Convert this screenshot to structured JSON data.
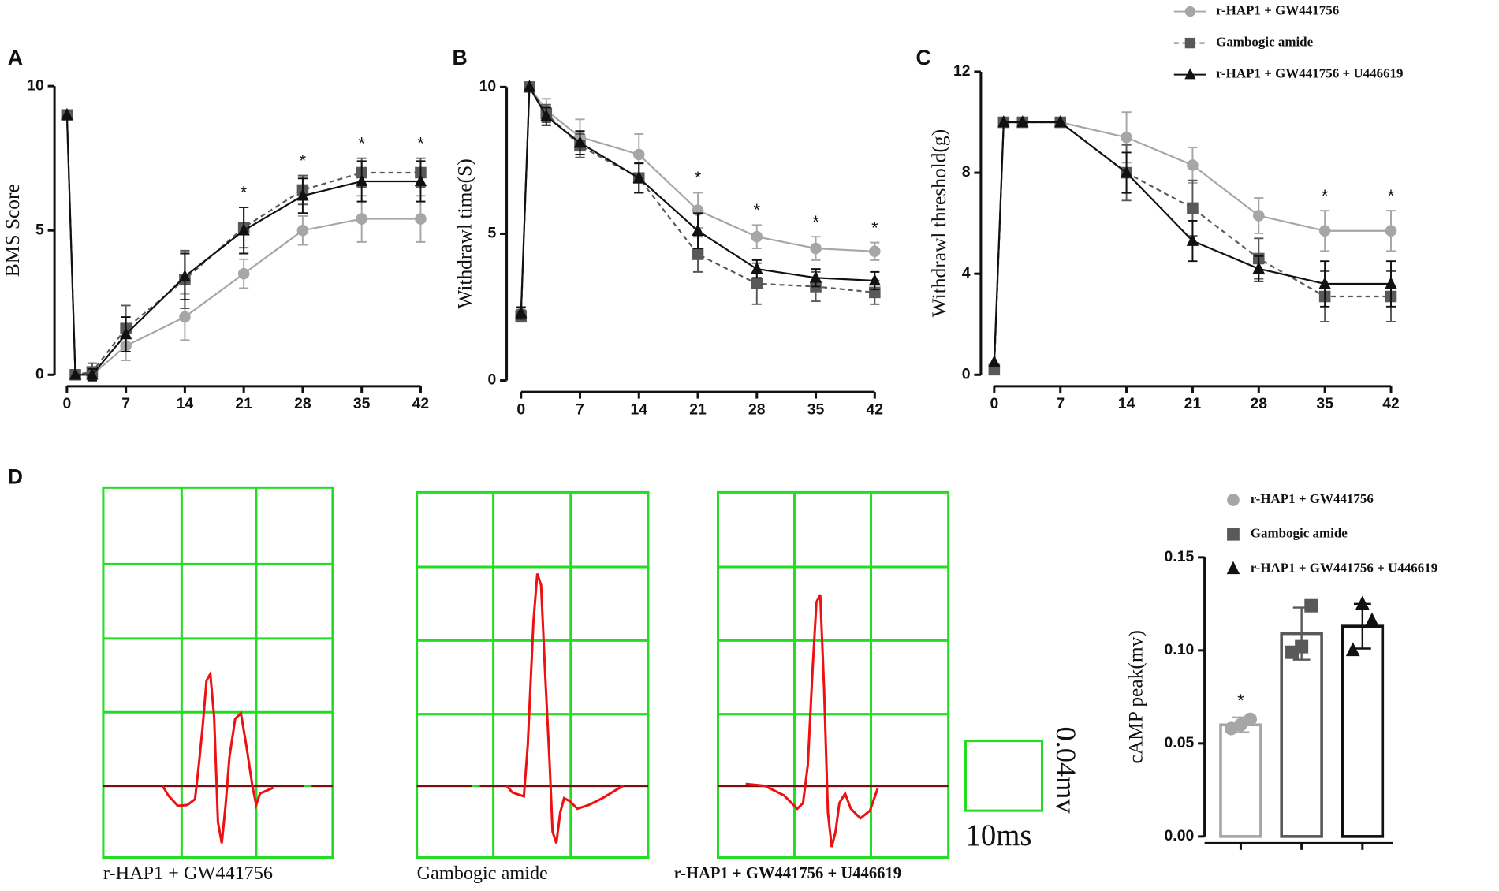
{
  "panels": [
    "A",
    "B",
    "C",
    "D"
  ],
  "traces": {
    "labels": [
      "r-HAP1 + GW441756",
      "Gambogic amide",
      "r-HAP1 + GW441756 + U446619"
    ],
    "scale_x": "10ms",
    "scale_y": "0.04mv"
  },
  "chart_data": [
    {
      "type": "line",
      "ylabel": "BMS Score",
      "x": [
        0,
        1,
        3,
        7,
        14,
        21,
        28,
        35,
        42
      ],
      "xlim": [
        0,
        42
      ],
      "xticks": [
        0,
        7,
        14,
        21,
        28,
        35,
        42
      ],
      "ylim": [
        0,
        10
      ],
      "yticks": [
        0,
        5,
        10
      ],
      "series": [
        {
          "color": "#a6a6a6",
          "marker": "circle",
          "dash": false,
          "values": [
            9,
            0,
            0,
            1,
            2,
            3.5,
            5,
            5.4,
            5.4
          ],
          "errors": [
            0,
            0,
            0,
            0.5,
            0.8,
            0.5,
            0.5,
            0.8,
            0.8
          ]
        },
        {
          "color": "#595959",
          "marker": "square",
          "dash": true,
          "values": [
            9,
            0,
            0.1,
            1.6,
            3.3,
            5.1,
            6.4,
            7,
            7
          ],
          "errors": [
            0,
            0,
            0.3,
            0.8,
            1.0,
            0.7,
            0.5,
            0.5,
            0.5
          ]
        },
        {
          "color": "#111111",
          "marker": "triangle",
          "dash": false,
          "values": [
            9,
            0,
            0,
            1.4,
            3.4,
            5,
            6.2,
            6.7,
            6.7
          ],
          "errors": [
            0,
            0,
            0.2,
            0.6,
            0.8,
            0.8,
            0.6,
            0.7,
            0.7
          ]
        }
      ],
      "annotations": [
        {
          "x": 21,
          "text": "*"
        },
        {
          "x": 28,
          "text": "*"
        },
        {
          "x": 35,
          "text": "*"
        },
        {
          "x": 42,
          "text": "*"
        }
      ]
    },
    {
      "type": "line",
      "ylabel": "Withdrawl time(S)",
      "x": [
        0,
        1,
        3,
        7,
        14,
        21,
        28,
        35,
        42
      ],
      "xlim": [
        0,
        42
      ],
      "xticks": [
        0,
        7,
        14,
        21,
        28,
        35,
        42
      ],
      "ylim": [
        0,
        10
      ],
      "yticks": [
        0,
        5,
        10
      ],
      "series": [
        {
          "color": "#a6a6a6",
          "marker": "circle",
          "dash": false,
          "values": [
            2.3,
            10,
            9.2,
            8.3,
            7.7,
            5.8,
            4.9,
            4.5,
            4.4
          ],
          "errors": [
            0.2,
            0,
            0.4,
            0.6,
            0.7,
            0.6,
            0.4,
            0.4,
            0.3
          ]
        },
        {
          "color": "#595959",
          "marker": "square",
          "dash": true,
          "values": [
            2.2,
            10,
            9.1,
            8.0,
            6.9,
            4.3,
            3.3,
            3.2,
            3.0
          ],
          "errors": [
            0.2,
            0,
            0.3,
            0.4,
            0.5,
            0.6,
            0.7,
            0.5,
            0.4
          ]
        },
        {
          "color": "#111111",
          "marker": "triangle",
          "dash": false,
          "values": [
            2.3,
            10,
            9.0,
            8.1,
            6.9,
            5.1,
            3.8,
            3.5,
            3.4
          ],
          "errors": [
            0.2,
            0,
            0.3,
            0.4,
            0.5,
            0.6,
            0.3,
            0.3,
            0.3
          ]
        }
      ],
      "annotations": [
        {
          "x": 21,
          "text": "*"
        },
        {
          "x": 28,
          "text": "*"
        },
        {
          "x": 35,
          "text": "*"
        },
        {
          "x": 42,
          "text": "*"
        }
      ]
    },
    {
      "type": "line",
      "ylabel": "Withdrawl threshold(g)",
      "x": [
        0,
        1,
        3,
        7,
        14,
        21,
        28,
        35,
        42
      ],
      "xlim": [
        0,
        42
      ],
      "xticks": [
        0,
        7,
        14,
        21,
        28,
        35,
        42
      ],
      "ylim": [
        0,
        12
      ],
      "yticks": [
        0,
        4,
        8,
        12
      ],
      "legend": "top-right",
      "series": [
        {
          "name": "r-HAP1 + GW441756",
          "color": "#a6a6a6",
          "marker": "circle",
          "dash": false,
          "values": [
            0.3,
            10,
            10,
            10,
            9.4,
            8.3,
            6.3,
            5.7,
            5.7
          ],
          "errors": [
            0,
            0,
            0,
            0,
            1.0,
            0.7,
            0.7,
            0.8,
            0.8
          ]
        },
        {
          "name": "Gambogic amide",
          "color": "#595959",
          "marker": "square",
          "dash": true,
          "values": [
            0.2,
            10,
            10,
            10,
            8.0,
            6.6,
            4.6,
            3.1,
            3.1
          ],
          "errors": [
            0,
            0,
            0,
            0,
            1.1,
            1.1,
            0.8,
            1.0,
            1.0
          ]
        },
        {
          "name": "r-HAP1 + GW441756 + U446619",
          "color": "#111111",
          "marker": "triangle",
          "dash": false,
          "values": [
            0.5,
            10,
            10,
            10,
            8.0,
            5.3,
            4.2,
            3.6,
            3.6
          ],
          "errors": [
            0,
            0,
            0,
            0,
            0.8,
            0.8,
            0.5,
            0.9,
            0.9
          ]
        }
      ],
      "annotations": [
        {
          "x": 35,
          "text": "*"
        },
        {
          "x": 42,
          "text": "*"
        }
      ]
    },
    {
      "type": "bar",
      "ylabel": "cAMP peak(mv)",
      "categories": [
        null,
        null,
        null
      ],
      "values": [
        0.06,
        0.109,
        0.113
      ],
      "errors": [
        0.004,
        0.014,
        0.012
      ],
      "points": [
        [
          0.058,
          0.06,
          0.063
        ],
        [
          0.099,
          0.102,
          0.124
        ],
        [
          0.1,
          0.125,
          0.116
        ]
      ],
      "names": [
        "r-HAP1 + GW441756",
        "Gambogic amide",
        "r-HAP1 + GW441756 + U446619"
      ],
      "colors": [
        "#a6a6a6",
        "#595959",
        "#111111"
      ],
      "markers": [
        "circle",
        "square",
        "triangle"
      ],
      "legend": "top-right",
      "ylim": [
        0,
        0.15
      ],
      "yticks": [
        {
          "value": 0,
          "label": "0.00"
        },
        {
          "value": 0.05,
          "label": "0.05"
        },
        {
          "value": 0.1,
          "label": "0.10"
        },
        {
          "value": 0.15,
          "label": "0.15"
        }
      ],
      "annotations": [
        {
          "x": 0,
          "text": "*"
        }
      ]
    }
  ]
}
